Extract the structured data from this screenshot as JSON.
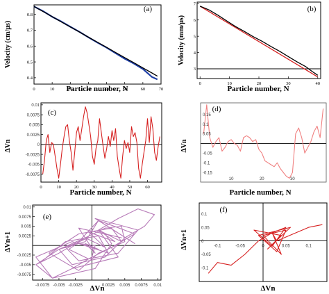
{
  "chart_data": [
    {
      "panel": "(a)",
      "type": "line",
      "xlabel": "Particle number, N",
      "ylabel": "Velocity  (cm/μs)",
      "xlim": [
        0,
        70
      ],
      "ylim": [
        0.36,
        0.86
      ],
      "xticks": [
        "0",
        "10",
        "20",
        "30",
        "40",
        "50",
        "60",
        "70"
      ],
      "yticks": [
        "0.4",
        "0.5",
        "0.6",
        "0.7",
        "0.8"
      ],
      "series": [
        {
          "color": "#1f3fa6",
          "x": [
            0,
            5,
            10,
            15,
            20,
            25,
            30,
            35,
            40,
            45,
            50,
            55,
            60,
            65,
            68
          ],
          "y": [
            0.85,
            0.82,
            0.785,
            0.755,
            0.722,
            0.69,
            0.655,
            0.622,
            0.59,
            0.555,
            0.52,
            0.49,
            0.455,
            0.405,
            0.39
          ]
        },
        {
          "color": "#000000",
          "x": [
            0,
            5,
            10,
            15,
            20,
            25,
            30,
            35,
            40,
            45,
            50,
            55,
            60,
            65,
            68
          ],
          "y": [
            0.85,
            0.818,
            0.786,
            0.753,
            0.721,
            0.689,
            0.656,
            0.624,
            0.592,
            0.559,
            0.527,
            0.495,
            0.462,
            0.43,
            0.41
          ]
        }
      ]
    },
    {
      "panel": "(b)",
      "type": "line",
      "xlabel": "Particle number, N",
      "ylabel": "Velocity  (mm/μs)",
      "xlim": [
        -1,
        41
      ],
      "ylim": [
        2.4,
        7.1
      ],
      "xticks": [
        "0",
        "10",
        "20",
        "30",
        "40"
      ],
      "yticks": [
        "3",
        "4",
        "5",
        "6",
        "7"
      ],
      "hline": 3.0,
      "series": [
        {
          "color": "#d62020",
          "x": [
            0,
            40
          ],
          "y": [
            6.85,
            2.5
          ]
        },
        {
          "color": "#000000",
          "x": [
            0,
            3,
            6,
            9,
            12,
            15,
            18,
            21,
            24,
            27,
            30,
            33,
            36,
            38,
            40
          ],
          "y": [
            6.85,
            6.62,
            6.3,
            5.95,
            5.6,
            5.3,
            4.98,
            4.7,
            4.38,
            4.08,
            3.75,
            3.42,
            3.12,
            2.85,
            2.6
          ]
        }
      ]
    },
    {
      "panel": "(c)",
      "type": "line",
      "xlabel": "Particle number, N",
      "ylabel": "ΔVn",
      "xlim": [
        0,
        68
      ],
      "ylim": [
        -0.0095,
        0.0105
      ],
      "xticks": [
        "0",
        "10",
        "20",
        "30",
        "40",
        "50",
        "60"
      ],
      "yticks": [
        "0.01",
        "0.0075",
        "0.005",
        "0.0025",
        "0",
        "-0.0025",
        "-0.005",
        "-0.0075"
      ],
      "series": [
        {
          "color": "#d62020",
          "x": [
            1,
            2,
            3,
            4,
            5,
            6,
            7,
            8,
            9,
            10,
            11,
            12,
            13,
            14,
            15,
            16,
            17,
            18,
            19,
            20,
            21,
            22,
            23,
            24,
            25,
            26,
            27,
            28,
            29,
            30,
            31,
            32,
            33,
            34,
            35,
            36,
            37,
            38,
            39,
            40,
            41,
            42,
            43,
            44,
            45,
            46,
            47,
            48,
            49,
            50,
            51,
            52,
            53,
            54,
            55,
            56,
            57,
            58,
            59,
            60,
            61,
            62,
            63,
            64,
            65,
            66,
            67
          ],
          "y": [
            -0.0075,
            -0.004,
            0.001,
            0.0025,
            -0.002,
            0.0005,
            0,
            -0.003,
            -0.006,
            -0.0085,
            -0.005,
            -0.001,
            0.002,
            0.0045,
            0.005,
            0.001,
            -0.002,
            -0.0065,
            -0.002,
            0.003,
            0.0045,
            0.001,
            0.004,
            0.007,
            0.0095,
            0.008,
            0.005,
            0.002,
            -0.003,
            -0.005,
            -0.001,
            0.001,
            0.0065,
            0.003,
            -0.0005,
            -0.0035,
            -0.001,
            0.002,
            -0.0005,
            0.0035,
            0.001,
            0.004,
            -0.003,
            -0.006,
            -0.0085,
            -0.003,
            0.001,
            -0.001,
            0.0005,
            -0.002,
            0.0045,
            0.002,
            0.003,
            0.0005,
            -0.006,
            -0.0085,
            -0.005,
            -0.002,
            0.001,
            0.0065,
            0.0005,
            0.007,
            0.004,
            -0.002,
            -0.004,
            -0.0005,
            0.002
          ]
        }
      ]
    },
    {
      "panel": "(d)",
      "type": "line",
      "xlabel": "Particle number, N",
      "ylabel": "ΔVn",
      "xlim": [
        0,
        41
      ],
      "ylim": [
        -0.2,
        0.21
      ],
      "xticks": [
        "10",
        "20",
        "30"
      ],
      "yticks": [
        "0.15",
        "0.1",
        "0.05",
        "-0.05",
        "-0.1",
        "-0.15"
      ],
      "series": [
        {
          "color": "#f08080",
          "x": [
            1,
            2,
            3,
            4,
            5,
            6,
            7,
            8,
            9,
            10,
            11,
            12,
            13,
            14,
            15,
            16,
            17,
            18,
            19,
            20,
            21,
            22,
            23,
            24,
            25,
            26,
            27,
            28,
            29,
            30,
            31,
            32,
            33,
            34,
            35,
            36,
            37,
            38,
            39,
            40
          ],
          "y": [
            0.05,
            0.2,
            0.03,
            -0.02,
            0.01,
            0.03,
            -0.04,
            -0.02,
            0.01,
            0.02,
            0.0,
            -0.01,
            -0.04,
            0.03,
            0.04,
            0.03,
            0.01,
            0.02,
            -0.03,
            -0.05,
            -0.09,
            -0.1,
            -0.11,
            -0.12,
            -0.1,
            -0.13,
            -0.15,
            -0.17,
            -0.18,
            -0.15,
            0.05,
            0.08,
            0.03,
            -0.05,
            -0.02,
            0.01,
            0.06,
            0.09,
            0.03,
            0.18
          ]
        }
      ]
    },
    {
      "panel": "(e)",
      "type": "scatter",
      "xlabel": "ΔVn",
      "ylabel": "ΔVn+1",
      "xlim": [
        -0.009,
        0.0105
      ],
      "ylim": [
        -0.009,
        0.0105
      ],
      "xticks": [
        "-0.0075",
        "-0.005",
        "-0.0025",
        "0.0025",
        "0.005",
        "0.0075",
        "0.01"
      ],
      "yticks": [
        "0.01",
        "0.0075",
        "0.005",
        "0.0025",
        "-0.0025",
        "-0.005",
        "-0.0075"
      ],
      "series": [
        {
          "color": "#b77bb8",
          "x": [
            -0.0075,
            -0.004,
            0.001,
            0.0025,
            -0.002,
            0.0005,
            0,
            -0.003,
            -0.006,
            -0.0085,
            -0.005,
            -0.001,
            0.002,
            0.0045,
            0.005,
            0.001,
            -0.002,
            -0.0065,
            -0.002,
            0.003,
            0.0045,
            0.001,
            0.004,
            0.007,
            0.0095,
            0.008,
            0.005,
            0.002,
            -0.003,
            -0.005,
            -0.001,
            0.001,
            0.0065,
            0.003,
            -0.0005,
            -0.0035,
            -0.001,
            0.002,
            -0.0005,
            0.0035,
            0.001,
            0.004,
            -0.003,
            -0.006,
            -0.0085,
            -0.003,
            0.001,
            -0.001,
            0.0005,
            -0.002,
            0.0045,
            0.002,
            0.003,
            0.0005,
            -0.006,
            -0.0085,
            -0.005,
            -0.002,
            0.001,
            0.0065,
            0.0005,
            0.007,
            0.004,
            -0.002,
            -0.004,
            -0.0005
          ],
          "y": [
            -0.004,
            0.001,
            0.0025,
            -0.002,
            0.0005,
            0,
            -0.003,
            -0.006,
            -0.0085,
            -0.005,
            -0.001,
            0.002,
            0.0045,
            0.005,
            0.001,
            -0.002,
            -0.0065,
            -0.002,
            0.003,
            0.0045,
            0.001,
            0.004,
            0.007,
            0.0095,
            0.008,
            0.005,
            0.002,
            -0.003,
            -0.005,
            -0.001,
            0.001,
            0.0065,
            0.003,
            -0.0005,
            -0.0035,
            -0.001,
            0.002,
            -0.0005,
            0.0035,
            0.001,
            0.004,
            -0.003,
            -0.006,
            -0.0085,
            -0.003,
            0.001,
            -0.001,
            0.0005,
            -0.002,
            0.0045,
            0.002,
            0.003,
            0.0005,
            -0.006,
            -0.0085,
            -0.005,
            -0.002,
            0.001,
            0.0065,
            0.0005,
            0.007,
            0.004,
            -0.002,
            -0.004,
            -0.0005,
            0.002
          ]
        }
      ]
    },
    {
      "panel": "(f)",
      "type": "scatter",
      "xlabel": "ΔVn",
      "ylabel": "ΔVn+1",
      "xlim": [
        -0.14,
        0.14
      ],
      "ylim": [
        -0.15,
        0.14
      ],
      "xticks": [
        "-0.1",
        "-0.05",
        "0",
        "0.05",
        "0.1"
      ],
      "yticks": [
        "0.1",
        "0.05",
        "0",
        "-0.05",
        "-0.1"
      ],
      "series": [
        {
          "color": "#d62020",
          "x": [
            -0.12,
            -0.1,
            -0.07,
            -0.04,
            -0.01,
            0.02,
            0.05,
            0.02,
            -0.02,
            0.04,
            0.01,
            0.06,
            -0.01,
            0.03,
            0.05,
            0.0,
            0.04,
            0.02,
            0.03,
            0.1,
            0.13
          ],
          "y": [
            -0.12,
            -0.08,
            -0.09,
            -0.05,
            0.0,
            0.03,
            0.05,
            -0.02,
            0.04,
            0.02,
            -0.03,
            0.05,
            0.02,
            -0.04,
            0.04,
            0.02,
            -0.05,
            0.03,
            0.0,
            0.05,
            0.06
          ]
        }
      ]
    }
  ]
}
